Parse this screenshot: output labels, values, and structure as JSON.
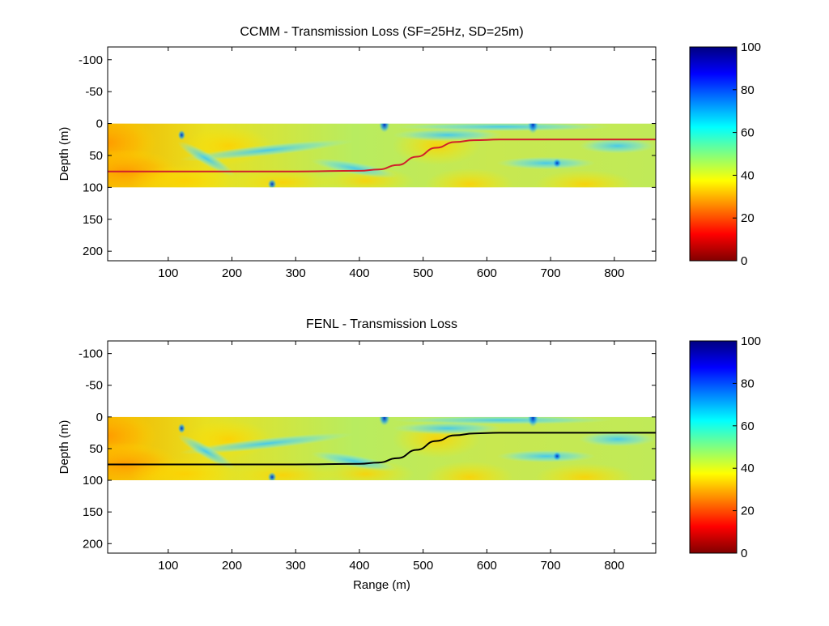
{
  "colors": {
    "jet": [
      "#000080",
      "#0000ff",
      "#0080ff",
      "#00ffff",
      "#80ff80",
      "#ffff00",
      "#ff8000",
      "#ff0000",
      "#800000"
    ],
    "ccmm_line": "#d0202a",
    "fenl_line": "#000000"
  },
  "chart_data": [
    {
      "type": "heatmap",
      "title": "CCMM  - Transmission Loss (SF=25Hz, SD=25m)",
      "xlabel": "",
      "ylabel": "Depth (m)",
      "xlim": [
        5,
        865
      ],
      "ylim": [
        -120,
        215
      ],
      "y_reversed": true,
      "xticks": [
        100,
        200,
        300,
        400,
        500,
        600,
        700,
        800
      ],
      "yticks": [
        -100,
        -50,
        0,
        50,
        100,
        150,
        200
      ],
      "field_depth_range": [
        0,
        100
      ],
      "colorbar": {
        "range": [
          0,
          100
        ],
        "ticks": [
          0,
          20,
          40,
          60,
          80,
          100
        ]
      },
      "interface_line": {
        "name": "",
        "x": [
          5,
          100,
          200,
          300,
          400,
          430,
          460,
          490,
          520,
          550,
          580,
          620,
          700,
          800,
          865
        ],
        "y": [
          75,
          75,
          75,
          75,
          74,
          72,
          65,
          52,
          38,
          29,
          26,
          25,
          25,
          25,
          25
        ]
      }
    },
    {
      "type": "heatmap",
      "title": "FENL - Transmission Loss",
      "xlabel": "Range (m)",
      "ylabel": "Depth (m)",
      "xlim": [
        5,
        865
      ],
      "ylim": [
        -120,
        215
      ],
      "y_reversed": true,
      "xticks": [
        100,
        200,
        300,
        400,
        500,
        600,
        700,
        800
      ],
      "yticks": [
        -100,
        -50,
        0,
        50,
        100,
        150,
        200
      ],
      "field_depth_range": [
        0,
        100
      ],
      "colorbar": {
        "range": [
          0,
          100
        ],
        "ticks": [
          0,
          20,
          40,
          60,
          80,
          100
        ]
      },
      "interface_line": {
        "name": "",
        "x": [
          5,
          100,
          200,
          300,
          400,
          430,
          460,
          490,
          520,
          550,
          580,
          620,
          700,
          800,
          865
        ],
        "y": [
          75,
          75,
          75,
          75,
          74,
          72,
          65,
          52,
          38,
          29,
          26,
          25,
          25,
          25,
          25
        ]
      }
    }
  ]
}
